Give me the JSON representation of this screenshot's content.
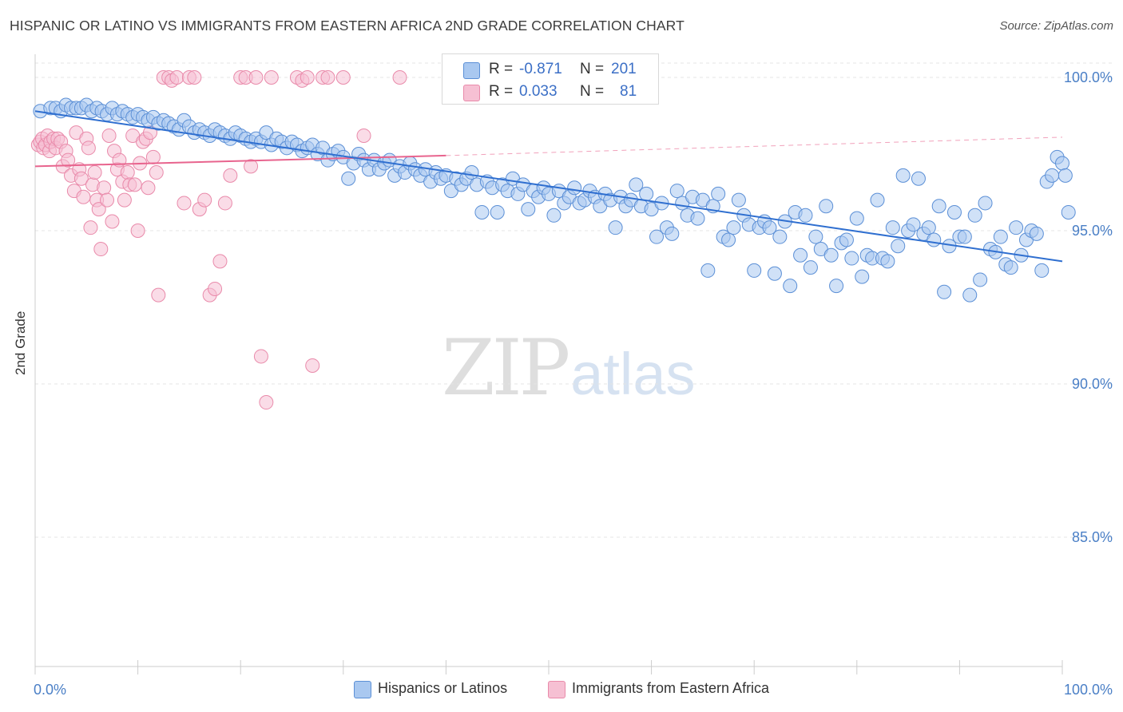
{
  "header": {
    "title": "HISPANIC OR LATINO VS IMMIGRANTS FROM EASTERN AFRICA 2ND GRADE CORRELATION CHART",
    "source": "Source: ZipAtlas.com"
  },
  "watermark": {
    "zip": "ZIP",
    "atlas": "atlas"
  },
  "stats_box": {
    "rows": [
      {
        "r_label": "R =",
        "r_value": "-0.871",
        "n_label": "N =",
        "n_value": "201"
      },
      {
        "r_label": "R =",
        "r_value": "0.033",
        "n_label": "N =",
        "n_value": "81"
      }
    ]
  },
  "legend": {
    "items": [
      {
        "label": "Hispanics or Latinos"
      },
      {
        "label": "Immigrants from Eastern Africa"
      }
    ]
  },
  "colors": {
    "blue_fill": "#a9c8f0",
    "blue_stroke": "#5b8fd6",
    "blue_line": "#2f6fd0",
    "pink_fill": "#f6c0d3",
    "pink_stroke": "#e98aaa",
    "pink_line": "#e8648e",
    "grid": "#e4e4e4",
    "tick_text": "#4a7fc6"
  },
  "chart_data": {
    "type": "scatter",
    "title": "HISPANIC OR LATINO VS IMMIGRANTS FROM EASTERN AFRICA 2ND GRADE CORRELATION CHART",
    "xlabel": "",
    "ylabel": "2nd Grade",
    "xlim": [
      0,
      100
    ],
    "ylim": [
      80.5,
      100.7
    ],
    "x_tick_labels": [
      "0.0%",
      "100.0%"
    ],
    "y_ticks": [
      100,
      95,
      90,
      85
    ],
    "y_tick_labels": [
      "100.0%",
      "95.0%",
      "90.0%",
      "85.0%"
    ],
    "grid": true,
    "legend_position": "bottom",
    "series": [
      {
        "name": "Hispanics or Latinos",
        "color": "#a9c8f0",
        "R": -0.871,
        "N": 201,
        "trend": {
          "x": [
            0,
            100
          ],
          "y": [
            98.9,
            94.0
          ]
        },
        "points": [
          [
            0.5,
            98.9
          ],
          [
            1.5,
            99.0
          ],
          [
            2,
            99.0
          ],
          [
            2.5,
            98.9
          ],
          [
            3,
            99.1
          ],
          [
            3.5,
            99.0
          ],
          [
            4,
            99.0
          ],
          [
            4.5,
            99.0
          ],
          [
            5,
            99.1
          ],
          [
            5.5,
            98.9
          ],
          [
            6,
            99.0
          ],
          [
            6.5,
            98.9
          ],
          [
            7,
            98.8
          ],
          [
            7.5,
            99.0
          ],
          [
            8,
            98.8
          ],
          [
            8.5,
            98.9
          ],
          [
            9,
            98.8
          ],
          [
            9.5,
            98.7
          ],
          [
            10,
            98.8
          ],
          [
            10.5,
            98.7
          ],
          [
            11,
            98.6
          ],
          [
            11.5,
            98.7
          ],
          [
            12,
            98.5
          ],
          [
            12.5,
            98.6
          ],
          [
            13,
            98.5
          ],
          [
            13.5,
            98.4
          ],
          [
            14,
            98.3
          ],
          [
            14.5,
            98.6
          ],
          [
            15,
            98.4
          ],
          [
            15.5,
            98.2
          ],
          [
            16,
            98.3
          ],
          [
            16.5,
            98.2
          ],
          [
            17,
            98.1
          ],
          [
            17.5,
            98.3
          ],
          [
            18,
            98.2
          ],
          [
            18.5,
            98.1
          ],
          [
            19,
            98.0
          ],
          [
            19.5,
            98.2
          ],
          [
            20,
            98.1
          ],
          [
            20.5,
            98.0
          ],
          [
            21,
            97.9
          ],
          [
            21.5,
            98.0
          ],
          [
            22,
            97.9
          ],
          [
            22.5,
            98.2
          ],
          [
            23,
            97.8
          ],
          [
            23.5,
            98.0
          ],
          [
            24,
            97.9
          ],
          [
            24.5,
            97.7
          ],
          [
            25,
            97.9
          ],
          [
            25.5,
            97.8
          ],
          [
            26,
            97.6
          ],
          [
            26.5,
            97.7
          ],
          [
            27,
            97.8
          ],
          [
            27.5,
            97.5
          ],
          [
            28,
            97.7
          ],
          [
            28.5,
            97.3
          ],
          [
            29,
            97.5
          ],
          [
            29.5,
            97.6
          ],
          [
            30,
            97.4
          ],
          [
            30.5,
            96.7
          ],
          [
            31,
            97.2
          ],
          [
            31.5,
            97.5
          ],
          [
            32,
            97.3
          ],
          [
            32.5,
            97.0
          ],
          [
            33,
            97.3
          ],
          [
            33.5,
            97.0
          ],
          [
            34,
            97.2
          ],
          [
            34.5,
            97.3
          ],
          [
            35,
            96.8
          ],
          [
            35.5,
            97.1
          ],
          [
            36,
            96.9
          ],
          [
            36.5,
            97.2
          ],
          [
            37,
            97.0
          ],
          [
            37.5,
            96.8
          ],
          [
            38,
            97.0
          ],
          [
            38.5,
            96.6
          ],
          [
            39,
            96.9
          ],
          [
            39.5,
            96.7
          ],
          [
            40,
            96.8
          ],
          [
            40.5,
            96.3
          ],
          [
            41,
            96.7
          ],
          [
            41.5,
            96.5
          ],
          [
            42,
            96.7
          ],
          [
            42.5,
            96.9
          ],
          [
            43,
            96.5
          ],
          [
            43.5,
            95.6
          ],
          [
            44,
            96.6
          ],
          [
            44.5,
            96.4
          ],
          [
            45,
            95.6
          ],
          [
            45.5,
            96.5
          ],
          [
            46,
            96.3
          ],
          [
            46.5,
            96.7
          ],
          [
            47,
            96.2
          ],
          [
            47.5,
            96.5
          ],
          [
            48,
            95.7
          ],
          [
            48.5,
            96.3
          ],
          [
            49,
            96.1
          ],
          [
            49.5,
            96.4
          ],
          [
            50,
            96.2
          ],
          [
            50.5,
            95.5
          ],
          [
            51,
            96.3
          ],
          [
            51.5,
            95.9
          ],
          [
            52,
            96.1
          ],
          [
            52.5,
            96.4
          ],
          [
            53,
            95.9
          ],
          [
            53.5,
            96.0
          ],
          [
            54,
            96.3
          ],
          [
            54.5,
            96.1
          ],
          [
            55,
            95.8
          ],
          [
            55.5,
            96.2
          ],
          [
            56,
            96.0
          ],
          [
            56.5,
            95.1
          ],
          [
            57,
            96.1
          ],
          [
            57.5,
            95.8
          ],
          [
            58,
            96.0
          ],
          [
            58.5,
            96.5
          ],
          [
            59,
            95.8
          ],
          [
            59.5,
            96.2
          ],
          [
            60,
            95.7
          ],
          [
            60.5,
            94.8
          ],
          [
            61,
            95.9
          ],
          [
            61.5,
            95.1
          ],
          [
            62,
            94.9
          ],
          [
            62.5,
            96.3
          ],
          [
            63,
            95.9
          ],
          [
            63.5,
            95.5
          ],
          [
            64,
            96.1
          ],
          [
            64.5,
            95.4
          ],
          [
            65,
            96.0
          ],
          [
            65.5,
            93.7
          ],
          [
            66,
            95.8
          ],
          [
            66.5,
            96.2
          ],
          [
            67,
            94.8
          ],
          [
            67.5,
            94.7
          ],
          [
            68,
            95.1
          ],
          [
            68.5,
            96.0
          ],
          [
            69,
            95.5
          ],
          [
            69.5,
            95.2
          ],
          [
            70,
            93.7
          ],
          [
            70.5,
            95.1
          ],
          [
            71,
            95.3
          ],
          [
            71.5,
            95.1
          ],
          [
            72,
            93.6
          ],
          [
            72.5,
            94.8
          ],
          [
            73,
            95.3
          ],
          [
            73.5,
            93.2
          ],
          [
            74,
            95.6
          ],
          [
            74.5,
            94.2
          ],
          [
            75,
            95.5
          ],
          [
            75.5,
            93.8
          ],
          [
            76,
            94.8
          ],
          [
            76.5,
            94.4
          ],
          [
            77,
            95.8
          ],
          [
            77.5,
            94.2
          ],
          [
            78,
            93.2
          ],
          [
            78.5,
            94.6
          ],
          [
            79,
            94.7
          ],
          [
            79.5,
            94.1
          ],
          [
            80,
            95.4
          ],
          [
            80.5,
            93.5
          ],
          [
            81,
            94.2
          ],
          [
            81.5,
            94.1
          ],
          [
            82,
            96.0
          ],
          [
            82.5,
            94.1
          ],
          [
            83,
            94.0
          ],
          [
            83.5,
            95.1
          ],
          [
            84,
            94.5
          ],
          [
            84.5,
            96.8
          ],
          [
            85,
            95.0
          ],
          [
            85.5,
            95.2
          ],
          [
            86,
            96.7
          ],
          [
            86.5,
            94.9
          ],
          [
            87,
            95.1
          ],
          [
            87.5,
            94.7
          ],
          [
            88,
            95.8
          ],
          [
            88.5,
            93.0
          ],
          [
            89,
            94.5
          ],
          [
            89.5,
            95.6
          ],
          [
            90,
            94.8
          ],
          [
            90.5,
            94.8
          ],
          [
            91,
            92.9
          ],
          [
            91.5,
            95.5
          ],
          [
            92,
            93.4
          ],
          [
            92.5,
            95.9
          ],
          [
            93,
            94.4
          ],
          [
            93.5,
            94.3
          ],
          [
            94,
            94.8
          ],
          [
            94.5,
            93.9
          ],
          [
            95,
            93.8
          ],
          [
            95.5,
            95.1
          ],
          [
            96,
            94.2
          ],
          [
            96.5,
            94.7
          ],
          [
            97,
            95.0
          ],
          [
            97.5,
            94.9
          ],
          [
            98,
            93.7
          ],
          [
            98.5,
            96.6
          ],
          [
            99,
            96.8
          ],
          [
            99.5,
            97.4
          ],
          [
            100,
            97.2
          ],
          [
            100.3,
            96.8
          ],
          [
            100.6,
            95.6
          ]
        ]
      },
      {
        "name": "Immigrants from Eastern Africa",
        "color": "#f6c0d3",
        "R": 0.033,
        "N": 81,
        "trend": {
          "x": [
            0,
            40
          ],
          "y": [
            97.1,
            97.45
          ]
        },
        "trend_dashed": {
          "x": [
            40,
            100
          ],
          "y": [
            97.45,
            98.05
          ]
        },
        "points": [
          [
            0.3,
            97.8
          ],
          [
            0.5,
            97.9
          ],
          [
            0.7,
            98.0
          ],
          [
            0.8,
            97.7
          ],
          [
            1.0,
            97.8
          ],
          [
            1.2,
            98.1
          ],
          [
            1.4,
            97.6
          ],
          [
            1.5,
            97.9
          ],
          [
            1.8,
            98.0
          ],
          [
            2.0,
            97.7
          ],
          [
            2.2,
            98.0
          ],
          [
            2.5,
            97.9
          ],
          [
            2.7,
            97.1
          ],
          [
            3.0,
            97.6
          ],
          [
            3.2,
            97.3
          ],
          [
            3.5,
            96.8
          ],
          [
            3.8,
            96.3
          ],
          [
            4.0,
            98.2
          ],
          [
            4.3,
            97.0
          ],
          [
            4.5,
            96.7
          ],
          [
            4.7,
            96.1
          ],
          [
            5.0,
            98.0
          ],
          [
            5.2,
            97.7
          ],
          [
            5.4,
            95.1
          ],
          [
            5.6,
            96.5
          ],
          [
            5.8,
            96.9
          ],
          [
            6.0,
            96.0
          ],
          [
            6.2,
            95.7
          ],
          [
            6.4,
            94.4
          ],
          [
            6.7,
            96.4
          ],
          [
            7.0,
            96.0
          ],
          [
            7.2,
            98.1
          ],
          [
            7.5,
            95.3
          ],
          [
            7.7,
            97.6
          ],
          [
            8.0,
            97.0
          ],
          [
            8.2,
            97.3
          ],
          [
            8.5,
            96.6
          ],
          [
            8.7,
            96.0
          ],
          [
            9.0,
            96.9
          ],
          [
            9.2,
            96.5
          ],
          [
            9.5,
            98.1
          ],
          [
            9.7,
            96.5
          ],
          [
            10.0,
            95.0
          ],
          [
            10.2,
            97.2
          ],
          [
            10.5,
            97.9
          ],
          [
            10.8,
            98.0
          ],
          [
            11.0,
            96.4
          ],
          [
            11.2,
            98.2
          ],
          [
            11.5,
            97.4
          ],
          [
            11.8,
            96.9
          ],
          [
            12.0,
            92.9
          ],
          [
            12.5,
            100.0
          ],
          [
            13.0,
            100.0
          ],
          [
            13.3,
            99.9
          ],
          [
            13.8,
            100.0
          ],
          [
            14.5,
            95.9
          ],
          [
            15.0,
            100.0
          ],
          [
            15.5,
            100.0
          ],
          [
            16.0,
            95.7
          ],
          [
            16.5,
            96.0
          ],
          [
            17.0,
            92.9
          ],
          [
            17.5,
            93.1
          ],
          [
            18.0,
            94.0
          ],
          [
            18.5,
            95.9
          ],
          [
            19.0,
            96.8
          ],
          [
            20.0,
            100.0
          ],
          [
            20.5,
            100.0
          ],
          [
            21.0,
            97.1
          ],
          [
            21.5,
            100.0
          ],
          [
            22.0,
            90.9
          ],
          [
            22.5,
            89.4
          ],
          [
            23.0,
            100.0
          ],
          [
            25.5,
            100.0
          ],
          [
            26.0,
            99.9
          ],
          [
            26.5,
            100.0
          ],
          [
            27.0,
            90.6
          ],
          [
            28.0,
            100.0
          ],
          [
            28.5,
            100.0
          ],
          [
            30.0,
            100.0
          ],
          [
            32.0,
            98.1
          ],
          [
            35.5,
            100.0
          ]
        ]
      }
    ]
  }
}
